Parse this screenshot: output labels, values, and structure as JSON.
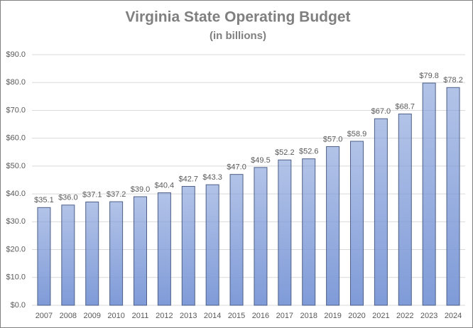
{
  "chart_data": {
    "type": "bar",
    "title": "Virginia State Operating Budget",
    "subtitle": "(in billions)",
    "categories": [
      "2007",
      "2008",
      "2009",
      "2010",
      "2011",
      "2012",
      "2013",
      "2014",
      "2015",
      "2016",
      "2017",
      "2018",
      "2019",
      "2020",
      "2021",
      "2022",
      "2023",
      "2024"
    ],
    "values": [
      35.1,
      36.0,
      37.1,
      37.2,
      39.0,
      40.4,
      42.7,
      43.3,
      47.0,
      49.5,
      52.2,
      52.6,
      57.0,
      58.9,
      67.0,
      68.7,
      79.8,
      78.2
    ],
    "value_labels": [
      "$35.1",
      "$36.0",
      "$37.1",
      "$37.2",
      "$39.0",
      "$40.4",
      "$42.7",
      "$43.3",
      "$47.0",
      "$49.5",
      "$52.2",
      "$52.6",
      "$57.0",
      "$58.9",
      "$67.0",
      "$68.7",
      "$79.8",
      "$78.2"
    ],
    "color": "#7f9bd8",
    "ylim": [
      0,
      90
    ],
    "yticks": [
      {
        "value": 0,
        "label": "$0.0"
      },
      {
        "value": 10,
        "label": "$10.0"
      },
      {
        "value": 20,
        "label": "$20.0"
      },
      {
        "value": 30,
        "label": "$30.0"
      },
      {
        "value": 40,
        "label": "$40.0"
      },
      {
        "value": 50,
        "label": "$50.0"
      },
      {
        "value": 60,
        "label": "$60.0"
      },
      {
        "value": 70,
        "label": "$70.0"
      },
      {
        "value": 80,
        "label": "$80.0"
      },
      {
        "value": 90,
        "label": "$90.0"
      }
    ],
    "grid": true
  }
}
